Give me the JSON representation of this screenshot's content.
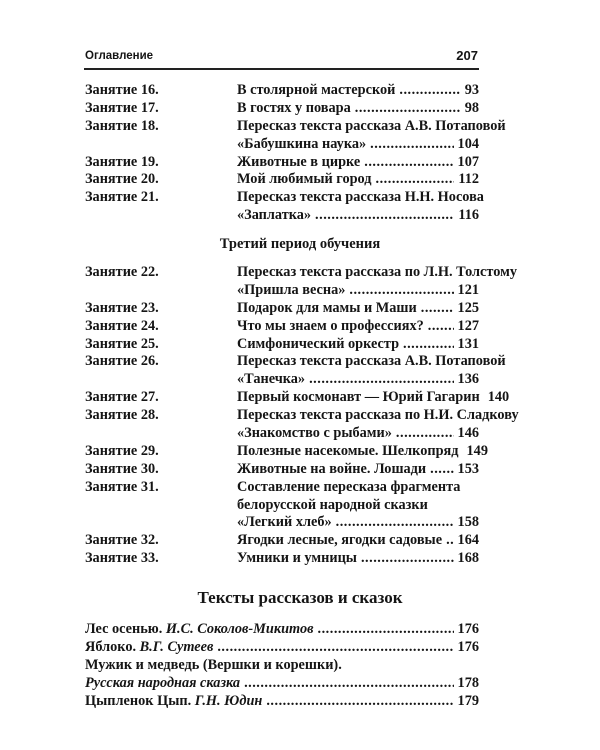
{
  "header": {
    "title": "Оглавление",
    "page_number": "207"
  },
  "block1": [
    {
      "label": "Занятие 16.",
      "lines": [
        "В столярной мастерской"
      ],
      "page": "93"
    },
    {
      "label": "Занятие 17.",
      "lines": [
        "В гостях у повара"
      ],
      "page": "98"
    },
    {
      "label": "Занятие 18.",
      "lines": [
        "Пересказ текста рассказа А.В. Потаповой",
        "«Бабушкина наука»"
      ],
      "page": "104"
    },
    {
      "label": "Занятие 19.",
      "lines": [
        "Животные в цирке"
      ],
      "page": "107"
    },
    {
      "label": "Занятие 20.",
      "lines": [
        "Мой любимый город"
      ],
      "page": "112"
    },
    {
      "label": "Занятие 21.",
      "lines": [
        "Пересказ текста рассказа Н.Н. Носова",
        "«Заплатка»"
      ],
      "page": "116"
    }
  ],
  "section1": "Третий период обучения",
  "block2": [
    {
      "label": "Занятие 22.",
      "lines": [
        "Пересказ текста рассказа по Л.Н. Толстому",
        "«Пришла весна»"
      ],
      "page": "121"
    },
    {
      "label": "Занятие 23.",
      "lines": [
        "Подарок для мамы и Маши"
      ],
      "page": "125"
    },
    {
      "label": "Занятие 24.",
      "lines": [
        "Что мы знаем о профессиях?"
      ],
      "page": "127"
    },
    {
      "label": "Занятие 25.",
      "lines": [
        "Симфонический оркестр"
      ],
      "page": "131"
    },
    {
      "label": "Занятие 26.",
      "lines": [
        "Пересказ текста рассказа А.В. Потаповой",
        "«Танечка»"
      ],
      "page": "136"
    },
    {
      "label": "Занятие 27.",
      "lines": [
        "Первый космонавт — Юрий Гагарин"
      ],
      "page": "140"
    },
    {
      "label": "Занятие 28.",
      "lines": [
        "Пересказ текста рассказа по Н.И. Сладкову",
        "«Знакомство с рыбами»"
      ],
      "page": "146"
    },
    {
      "label": "Занятие 29.",
      "lines": [
        "Полезные насекомые. Шелкопряд"
      ],
      "page": "149"
    },
    {
      "label": "Занятие 30.",
      "lines": [
        "Животные на войне. Лошади"
      ],
      "page": "153"
    },
    {
      "label": "Занятие 31.",
      "lines": [
        "Составление пересказа фрагмента",
        "белорусской народной сказки",
        "«Легкий хлеб»"
      ],
      "page": "158"
    },
    {
      "label": "Занятие 32.",
      "lines": [
        "Ягодки лесные, ягодки садовые"
      ],
      "page": "164"
    },
    {
      "label": "Занятие 33.",
      "lines": [
        "Умники и умницы"
      ],
      "page": "168"
    }
  ],
  "section2": "Тексты рассказов и сказок",
  "block3": [
    {
      "lines": [
        [
          {
            "text": "Лес осенью. ",
            "italic": false
          },
          {
            "text": "И.С. Соколов-Микитов",
            "italic": true
          }
        ]
      ],
      "page": "176"
    },
    {
      "lines": [
        [
          {
            "text": "Яблоко. ",
            "italic": false
          },
          {
            "text": "В.Г. Сутеев",
            "italic": true
          }
        ]
      ],
      "page": "176"
    },
    {
      "lines": [
        [
          {
            "text": "Мужик и медведь (Вершки и корешки).",
            "italic": false
          }
        ],
        [
          {
            "text": "Русская народная сказка",
            "italic": true
          }
        ]
      ],
      "page": "178"
    },
    {
      "lines": [
        [
          {
            "text": "Цыпленок Цып. ",
            "italic": false
          },
          {
            "text": "Г.Н. Юдин",
            "italic": true
          }
        ]
      ],
      "page": "179"
    }
  ]
}
